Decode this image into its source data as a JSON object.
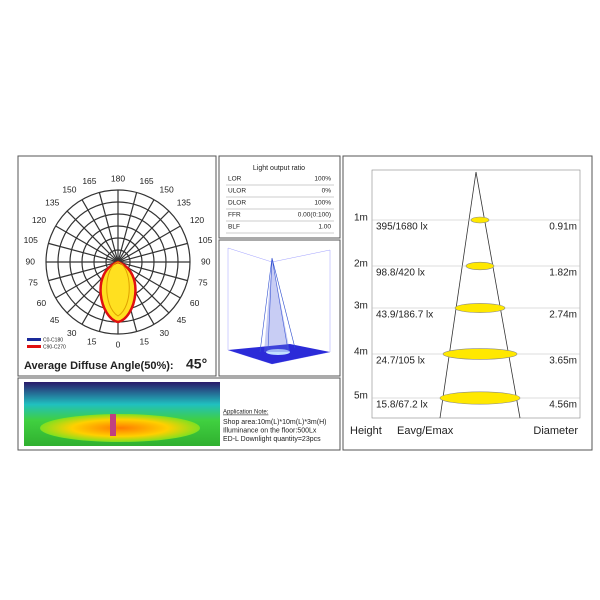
{
  "polar": {
    "top_label": "180",
    "bottom_label": "0",
    "left_labels": [
      "165",
      "150",
      "135",
      "120",
      "105",
      "90",
      "75",
      "60",
      "45",
      "30",
      "15"
    ],
    "right_labels": [
      "165",
      "150",
      "135",
      "120",
      "105",
      "90",
      "75",
      "60",
      "45",
      "30",
      "15"
    ],
    "legend": [
      {
        "name": "C0-C180",
        "color": "#1a2a9a"
      },
      {
        "name": "C90-C270",
        "color": "#e01010"
      }
    ],
    "caption": "Average Diffuse Angle(50%):",
    "angle": "45°"
  },
  "output_table": {
    "title": "Light output ratio",
    "rows": [
      [
        "LOR",
        "100%"
      ],
      [
        "ULOR",
        "0%"
      ],
      [
        "DLOR",
        "100%"
      ],
      [
        "FFR",
        "0.00(0:100)"
      ],
      [
        "BLF",
        "1.00"
      ]
    ]
  },
  "application_note": {
    "title": "Application Note:",
    "lines": [
      "Shop area:10m(L)*10m(L)*3m(H)",
      "Illuminance on the floor:500Lx",
      "ED-L Downlight quantity=23pcs"
    ]
  },
  "cone": {
    "rows": [
      {
        "height": "1m",
        "illuminance": "395/1680 lx",
        "diameter": "0.91m"
      },
      {
        "height": "2m",
        "illuminance": "98.8/420 lx",
        "diameter": "1.82m"
      },
      {
        "height": "3m",
        "illuminance": "43.9/186.7 lx",
        "diameter": "2.74m"
      },
      {
        "height": "4m",
        "illuminance": "24.7/105 lx",
        "diameter": "3.65m"
      },
      {
        "height": "5m",
        "illuminance": "15.8/67.2 lx",
        "diameter": "4.56m"
      }
    ],
    "footer": [
      "Height",
      "Eavg/Emax",
      "Diameter"
    ]
  }
}
